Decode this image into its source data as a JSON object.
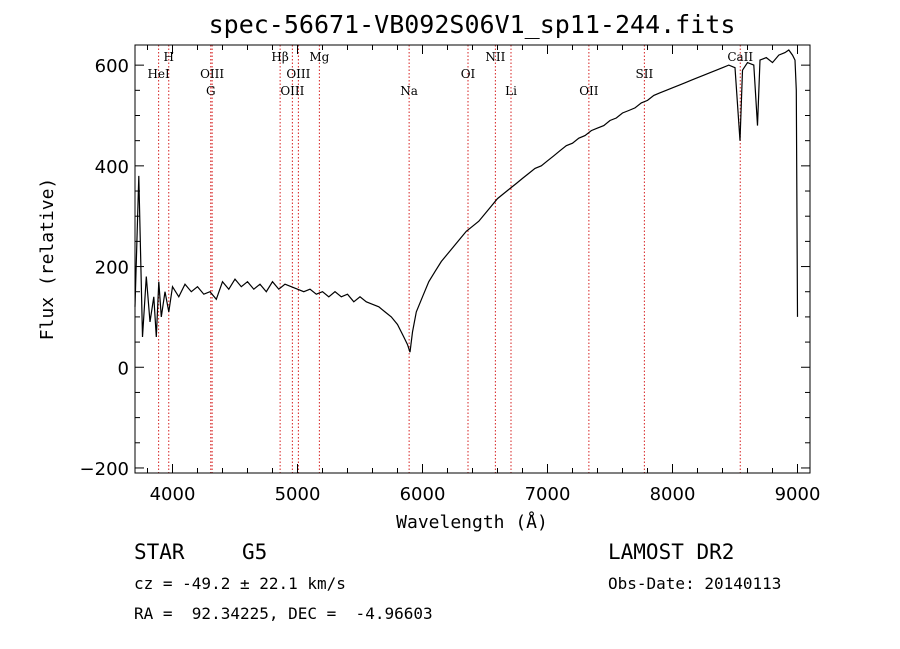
{
  "chart_data": {
    "type": "line",
    "title": "spec-56671-VB092S06V1_sp11-244.fits",
    "xlabel": "Wavelength (Å)",
    "ylabel": "Flux (relative)",
    "xlim": [
      3700,
      9100
    ],
    "ylim": [
      -210,
      640
    ],
    "xticks": [
      4000,
      5000,
      6000,
      7000,
      8000,
      9000
    ],
    "yticks": [
      -200,
      0,
      200,
      400,
      600
    ],
    "grid": false,
    "series": [
      {
        "x": [
          3700,
          3730,
          3760,
          3790,
          3820,
          3850,
          3870,
          3890,
          3910,
          3940,
          3970,
          4000,
          4050,
          4100,
          4150,
          4200,
          4250,
          4300,
          4350,
          4400,
          4450,
          4500,
          4550,
          4600,
          4650,
          4700,
          4750,
          4800,
          4850,
          4900,
          4950,
          5000,
          5050,
          5100,
          5150,
          5200,
          5250,
          5300,
          5350,
          5400,
          5450,
          5500,
          5550,
          5600,
          5650,
          5700,
          5750,
          5800,
          5850,
          5880,
          5900,
          5920,
          5950,
          6000,
          6050,
          6100,
          6150,
          6200,
          6250,
          6300,
          6350,
          6400,
          6450,
          6500,
          6550,
          6600,
          6650,
          6700,
          6750,
          6800,
          6850,
          6900,
          6950,
          7000,
          7050,
          7100,
          7150,
          7200,
          7250,
          7300,
          7350,
          7400,
          7450,
          7500,
          7550,
          7600,
          7650,
          7700,
          7750,
          7800,
          7850,
          7900,
          7950,
          8000,
          8050,
          8100,
          8150,
          8200,
          8250,
          8300,
          8350,
          8400,
          8450,
          8500,
          8540,
          8560,
          8600,
          8650,
          8680,
          8700,
          8750,
          8800,
          8850,
          8900,
          8930,
          8960,
          8980,
          8990,
          9000
        ],
        "y": [
          120,
          380,
          60,
          180,
          90,
          140,
          60,
          170,
          100,
          150,
          110,
          160,
          140,
          165,
          150,
          160,
          145,
          150,
          135,
          170,
          155,
          175,
          160,
          170,
          155,
          165,
          150,
          170,
          155,
          165,
          160,
          155,
          150,
          155,
          145,
          150,
          140,
          150,
          140,
          145,
          130,
          140,
          130,
          125,
          120,
          110,
          100,
          85,
          60,
          45,
          30,
          70,
          110,
          140,
          170,
          190,
          210,
          225,
          240,
          255,
          270,
          280,
          290,
          305,
          320,
          335,
          345,
          355,
          365,
          375,
          385,
          395,
          400,
          410,
          420,
          430,
          440,
          445,
          455,
          460,
          470,
          475,
          480,
          490,
          495,
          505,
          510,
          515,
          525,
          530,
          540,
          545,
          550,
          555,
          560,
          565,
          570,
          575,
          580,
          585,
          590,
          595,
          600,
          595,
          450,
          590,
          605,
          600,
          480,
          610,
          615,
          605,
          620,
          625,
          630,
          620,
          610,
          550,
          100
        ]
      }
    ],
    "annotations": [
      {
        "label": "HeI",
        "x": 3889,
        "row": 1
      },
      {
        "label": "H",
        "x": 3970,
        "row": 0
      },
      {
        "label": "OIII",
        "x": 4317,
        "row": 1
      },
      {
        "label": "G",
        "x": 4306,
        "row": 2
      },
      {
        "label": "Hβ",
        "x": 4861,
        "row": 0
      },
      {
        "label": "OIII",
        "x": 4959,
        "row": 2
      },
      {
        "label": "OIII",
        "x": 5007,
        "row": 1
      },
      {
        "label": "Mg",
        "x": 5175,
        "row": 0
      },
      {
        "label": "Na",
        "x": 5893,
        "row": 2
      },
      {
        "label": "OI",
        "x": 6364,
        "row": 1
      },
      {
        "label": "NII",
        "x": 6583,
        "row": 0
      },
      {
        "label": "Li",
        "x": 6708,
        "row": 2
      },
      {
        "label": "OII",
        "x": 7331,
        "row": 2
      },
      {
        "label": "SII",
        "x": 7775,
        "row": 1
      },
      {
        "label": "CaII",
        "x": 8542,
        "row": 0
      }
    ]
  },
  "footer": {
    "object_type": "STAR",
    "subclass": "G5",
    "survey": "LAMOST DR2",
    "cz": "cz = -49.2 ± 22.1 km/s",
    "obs_date": "Obs-Date: 20140113",
    "radec": "RA =  92.34225, DEC =  -4.96603"
  }
}
